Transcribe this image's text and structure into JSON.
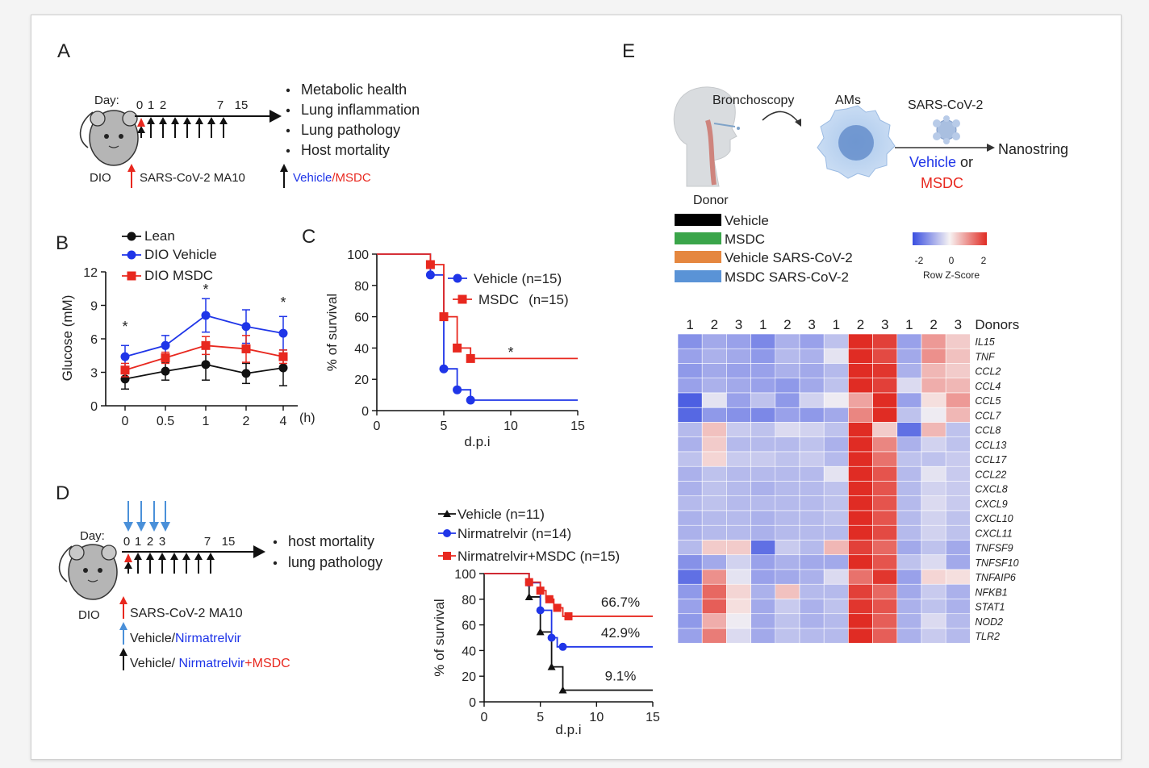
{
  "panels": {
    "A": "A",
    "B": "B",
    "C": "C",
    "D": "D",
    "E": "E"
  },
  "colors": {
    "lean": "#111111",
    "vehicle": "#1f35e8",
    "msdc": "#e8281f",
    "arrow_red": "#e8281f",
    "arrow_blue": "#4a90d9"
  },
  "panelA": {
    "day_label": "Day:",
    "days": [
      "0",
      "1",
      "2",
      "7",
      "15"
    ],
    "outcomes": [
      "Metabolic health",
      "Lung inflammation",
      "Lung pathology",
      "Host mortality"
    ],
    "mouse_label": "DIO",
    "legend_virus": "SARS-CoV-2 MA10",
    "legend_treat_vehicle": "Vehicle",
    "legend_treat_sep": "/",
    "legend_treat_msdc": "MSDC"
  },
  "panelD": {
    "day_label": "Day:",
    "days": [
      "0",
      "1",
      "2",
      "3",
      "7",
      "15"
    ],
    "outcomes": [
      "host mortality",
      "lung pathology"
    ],
    "mouse_label": "DIO",
    "legend_virus": "SARS-CoV-2 MA10",
    "legend_blue_a": "Vehicle/",
    "legend_blue_b": "Nirmatrelvir",
    "legend_black_a": "Vehicle/ ",
    "legend_black_b": "Nirmatrelvir",
    "legend_black_c": "+MSDC"
  },
  "chart_data": [
    {
      "id": "B",
      "type": "line",
      "ylabel": "Glucose (mM)",
      "x_unit": "(h)",
      "categories": [
        "0",
        "0.5",
        "1",
        "2",
        "4"
      ],
      "yticks": [
        "0",
        "3",
        "6",
        "9",
        "12"
      ],
      "ylim": [
        0,
        12
      ],
      "series": [
        {
          "name": "Lean",
          "values": [
            2.4,
            3.1,
            3.7,
            2.9,
            3.4
          ],
          "err": [
            0.9,
            0.8,
            1.4,
            0.9,
            1.6
          ]
        },
        {
          "name": "DIO Vehicle",
          "values": [
            4.4,
            5.4,
            8.1,
            7.1,
            6.5
          ],
          "err": [
            1.0,
            0.9,
            1.5,
            1.5,
            1.5
          ]
        },
        {
          "name": "DIO MSDC",
          "values": [
            3.2,
            4.3,
            5.4,
            5.1,
            4.4
          ],
          "err": [
            0.6,
            0.5,
            0.8,
            1.2,
            0.6
          ]
        }
      ],
      "sig": "*",
      "sig_at": [
        "0",
        "1",
        "4"
      ]
    },
    {
      "id": "C",
      "type": "line",
      "ylabel": "% of survival",
      "xlabel": "d.p.i",
      "xticks": [
        "0",
        "5",
        "10",
        "15"
      ],
      "yticks": [
        "0",
        "20",
        "40",
        "60",
        "80",
        "100"
      ],
      "xlim": [
        0,
        15
      ],
      "ylim": [
        0,
        100
      ],
      "series": [
        {
          "name": "Vehicle (n=15)",
          "steps": [
            [
              0,
              100
            ],
            [
              4,
              100
            ],
            [
              4,
              86.7
            ],
            [
              5,
              86.7
            ],
            [
              5,
              26.7
            ],
            [
              6,
              26.7
            ],
            [
              6,
              13.3
            ],
            [
              7,
              13.3
            ],
            [
              7,
              6.7
            ],
            [
              15,
              6.7
            ]
          ],
          "markers": [
            [
              4,
              86.7
            ],
            [
              5,
              26.7
            ],
            [
              6,
              13.3
            ],
            [
              7,
              6.7
            ]
          ]
        },
        {
          "name": "MSDC",
          "n": "(n=15)",
          "steps": [
            [
              0,
              100
            ],
            [
              4,
              100
            ],
            [
              4,
              93.3
            ],
            [
              5,
              93.3
            ],
            [
              5,
              60
            ],
            [
              6,
              60
            ],
            [
              6,
              40
            ],
            [
              7,
              40
            ],
            [
              7,
              33.3
            ],
            [
              15,
              33.3
            ]
          ],
          "markers": [
            [
              4,
              93.3
            ],
            [
              5,
              60
            ],
            [
              6,
              40
            ],
            [
              7,
              33.3
            ]
          ]
        }
      ],
      "sig": "*"
    },
    {
      "id": "D",
      "type": "line",
      "ylabel": "% of survival",
      "xlabel": "d.p.i",
      "xticks": [
        "0",
        "5",
        "10",
        "15"
      ],
      "yticks": [
        "0",
        "20",
        "40",
        "60",
        "80",
        "100"
      ],
      "xlim": [
        0,
        15
      ],
      "ylim": [
        0,
        100
      ],
      "series": [
        {
          "name": "Vehicle (n=11)",
          "steps": [
            [
              0,
              100
            ],
            [
              4,
              100
            ],
            [
              4,
              81.8
            ],
            [
              5,
              81.8
            ],
            [
              5,
              54.5
            ],
            [
              6,
              54.5
            ],
            [
              6,
              27.3
            ],
            [
              7,
              27.3
            ],
            [
              7,
              9.1
            ],
            [
              15,
              9.1
            ]
          ],
          "markers": [
            [
              4,
              81.8
            ],
            [
              5,
              54.5
            ],
            [
              6,
              27.3
            ],
            [
              7,
              9.1
            ]
          ],
          "end_label": "9.1%"
        },
        {
          "name": "Nirmatrelvir (n=14)",
          "steps": [
            [
              0,
              100
            ],
            [
              4,
              100
            ],
            [
              4,
              92.9
            ],
            [
              5,
              92.9
            ],
            [
              5,
              71.4
            ],
            [
              6,
              71.4
            ],
            [
              6,
              50
            ],
            [
              6.5,
              50
            ],
            [
              6.5,
              42.9
            ],
            [
              15,
              42.9
            ]
          ],
          "markers": [
            [
              4,
              92.9
            ],
            [
              5,
              71.4
            ],
            [
              6,
              50
            ],
            [
              7,
              42.9
            ]
          ],
          "end_label": "42.9%"
        },
        {
          "name": "Nirmatrelvir+MSDC (n=15)",
          "steps": [
            [
              0,
              100
            ],
            [
              4,
              100
            ],
            [
              4,
              93.3
            ],
            [
              5,
              93.3
            ],
            [
              5,
              86.7
            ],
            [
              5.5,
              86.7
            ],
            [
              5.5,
              80
            ],
            [
              6.2,
              80
            ],
            [
              6.2,
              73.3
            ],
            [
              7,
              73.3
            ],
            [
              7,
              66.7
            ],
            [
              15,
              66.7
            ]
          ],
          "markers": [
            [
              4,
              93.3
            ],
            [
              5,
              86.7
            ],
            [
              5.8,
              80
            ],
            [
              6.5,
              73.3
            ],
            [
              7.5,
              66.7
            ]
          ],
          "end_label": "66.7%"
        }
      ]
    },
    {
      "id": "E",
      "type": "heatmap",
      "schematic": {
        "step1": "Bronchoscopy",
        "step2": "AMs",
        "step3": "SARS-CoV-2",
        "donor": "Donor",
        "vehicle": "Vehicle",
        "or": " or",
        "msdc": "MSDC",
        "end": "Nanostring"
      },
      "groups": [
        {
          "name": "Vehicle",
          "color": "#000000"
        },
        {
          "name": "MSDC",
          "color": "#3aa54a"
        },
        {
          "name": "Vehicle SARS-CoV-2",
          "color": "#e5873f"
        },
        {
          "name": "MSDC SARS-CoV-2",
          "color": "#5a93d6"
        }
      ],
      "scale": {
        "ticks": [
          "-2",
          "0",
          "2"
        ],
        "label": "Row Z-Score"
      },
      "columns": [
        "1",
        "2",
        "3",
        "1",
        "2",
        "3",
        "1",
        "2",
        "3",
        "1",
        "2",
        "3"
      ],
      "columns_title": "Donors",
      "genes": [
        "IL15",
        "TNF",
        "CCL2",
        "CCL4",
        "CCL5",
        "CCL7",
        "CCL8",
        "CCL13",
        "CCL17",
        "CCL22",
        "CXCL8",
        "CXCL9",
        "CXCL10",
        "CXCL11",
        "TNFSF9",
        "TNFSF10",
        "TNFAIP6",
        "NFKB1",
        "STAT1",
        "NOD2",
        "TLR2"
      ],
      "values": [
        [
          -1.2,
          -0.9,
          -1.0,
          -1.3,
          -0.8,
          -1.0,
          -0.6,
          2.0,
          1.8,
          -1.0,
          0.9,
          0.4
        ],
        [
          -1.0,
          -0.8,
          -0.9,
          -1.1,
          -0.7,
          -0.8,
          -0.2,
          2.0,
          1.7,
          -0.9,
          1.0,
          0.5
        ],
        [
          -1.1,
          -0.9,
          -1.0,
          -1.0,
          -0.8,
          -0.9,
          -0.7,
          2.0,
          1.9,
          -0.8,
          0.6,
          0.4
        ],
        [
          -1.0,
          -0.8,
          -0.9,
          -1.0,
          -1.1,
          -0.9,
          -0.6,
          2.0,
          1.8,
          -0.3,
          0.7,
          0.6
        ],
        [
          -1.8,
          -0.2,
          -1.0,
          -0.6,
          -1.1,
          -0.4,
          -0.1,
          0.8,
          2.0,
          -1.0,
          0.2,
          0.9
        ],
        [
          -1.7,
          -1.1,
          -1.2,
          -1.3,
          -1.0,
          -1.1,
          -0.9,
          1.1,
          2.0,
          -0.6,
          -0.1,
          0.6
        ],
        [
          -0.7,
          0.5,
          -0.5,
          -0.6,
          -0.3,
          -0.4,
          -0.6,
          2.2,
          0.4,
          -1.6,
          0.6,
          -0.6
        ],
        [
          -0.8,
          0.4,
          -0.7,
          -0.7,
          -0.7,
          -0.6,
          -0.8,
          2.2,
          1.1,
          -0.8,
          -0.4,
          -0.6
        ],
        [
          -0.6,
          0.3,
          -0.5,
          -0.5,
          -0.6,
          -0.5,
          -0.7,
          2.2,
          1.3,
          -0.6,
          -0.6,
          -0.5
        ],
        [
          -0.8,
          -0.6,
          -0.7,
          -0.7,
          -0.7,
          -0.7,
          -0.2,
          2.2,
          1.6,
          -0.7,
          -0.2,
          -0.5
        ],
        [
          -0.8,
          -0.6,
          -0.7,
          -0.8,
          -0.7,
          -0.7,
          -0.6,
          2.2,
          1.6,
          -0.7,
          -0.4,
          -0.5
        ],
        [
          -0.7,
          -0.6,
          -0.7,
          -0.7,
          -0.7,
          -0.7,
          -0.6,
          2.2,
          1.6,
          -0.7,
          -0.3,
          -0.5
        ],
        [
          -0.8,
          -0.7,
          -0.7,
          -0.8,
          -0.7,
          -0.7,
          -0.6,
          2.2,
          1.6,
          -0.7,
          -0.4,
          -0.6
        ],
        [
          -0.8,
          -0.7,
          -0.7,
          -0.8,
          -0.7,
          -0.7,
          -0.7,
          2.2,
          1.7,
          -0.7,
          -0.4,
          -0.6
        ],
        [
          -0.7,
          0.4,
          0.4,
          -1.6,
          -0.5,
          -0.7,
          0.6,
          1.8,
          1.4,
          -0.9,
          -0.6,
          -0.9
        ],
        [
          -1.2,
          -0.9,
          -0.4,
          -1.0,
          -0.8,
          -0.9,
          -0.9,
          2.0,
          1.6,
          -0.6,
          -0.3,
          -0.9
        ],
        [
          -1.6,
          1.0,
          -0.2,
          -1.0,
          -0.9,
          -0.8,
          -0.3,
          1.3,
          1.9,
          -1.0,
          0.3,
          0.2
        ],
        [
          -1.1,
          1.4,
          0.3,
          -0.8,
          0.5,
          -0.7,
          -0.7,
          1.8,
          1.4,
          -0.9,
          -0.5,
          -0.8
        ],
        [
          -1.0,
          1.5,
          0.2,
          -0.9,
          -0.5,
          -0.8,
          -0.6,
          1.9,
          1.6,
          -0.8,
          -0.6,
          -0.8
        ],
        [
          -1.1,
          0.7,
          -0.1,
          -0.9,
          -0.6,
          -0.8,
          -0.7,
          2.0,
          1.5,
          -0.8,
          -0.3,
          -0.7
        ],
        [
          -1.0,
          1.2,
          -0.3,
          -0.9,
          -0.6,
          -0.7,
          -0.7,
          2.0,
          1.5,
          -0.8,
          -0.5,
          -0.7
        ]
      ]
    }
  ]
}
